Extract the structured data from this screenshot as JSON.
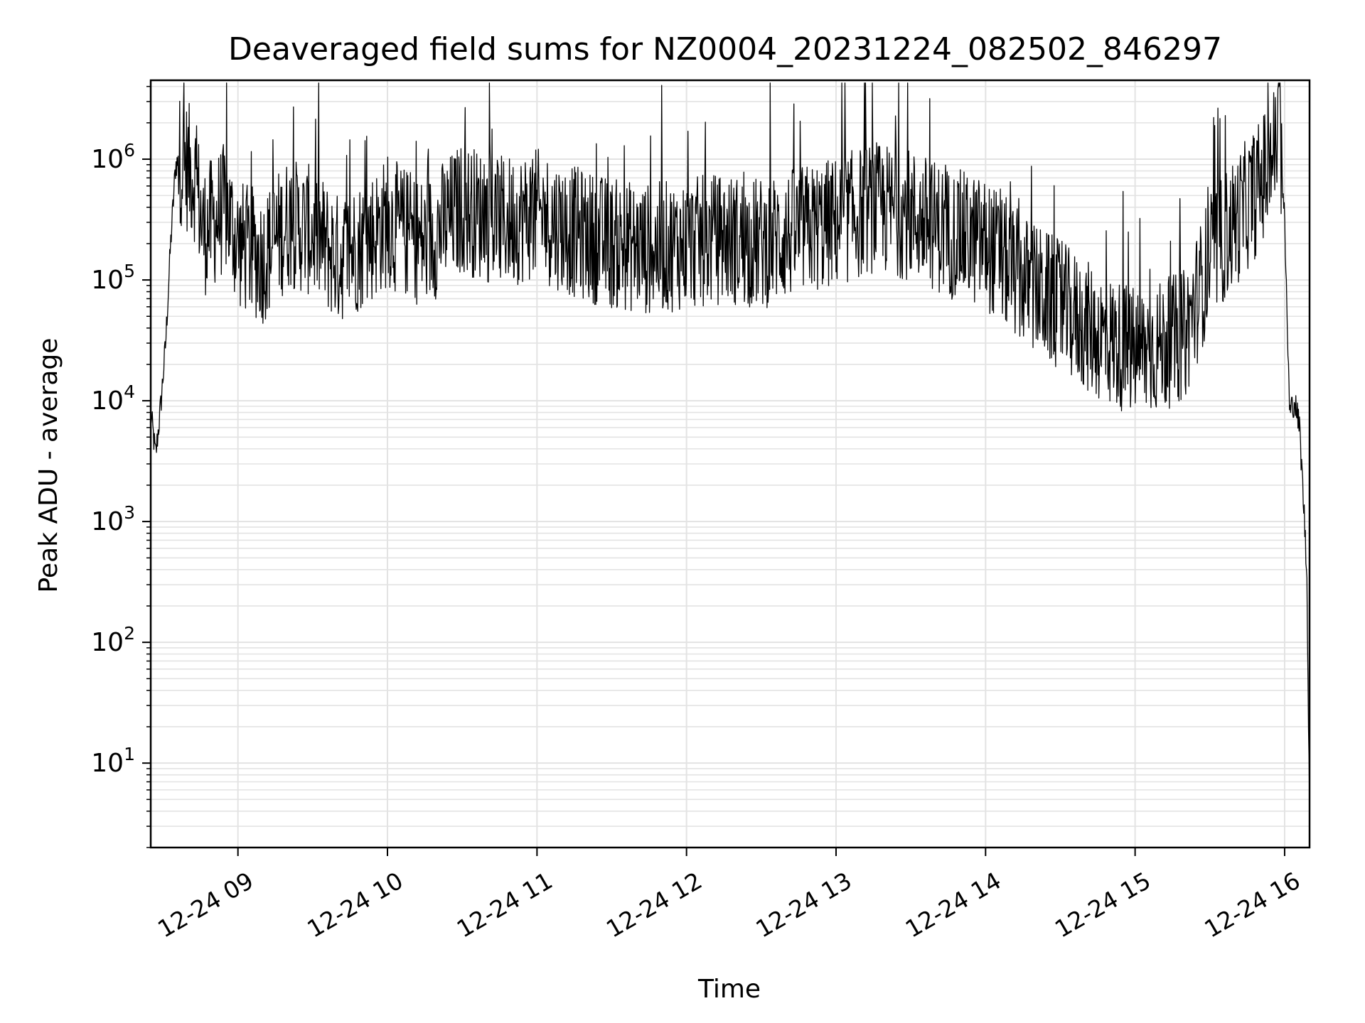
{
  "chart_data": {
    "type": "line",
    "title": "Deaveraged field sums for NZ0004_20231224_082502_846297",
    "xlabel": "Time",
    "ylabel": "Peak ADU - average",
    "yscale": "log",
    "grid": true,
    "legend": "none",
    "line_color": "#000000",
    "xlim": [
      "12-24 08:25",
      "12-24 16:10"
    ],
    "ylim": [
      2,
      4500000
    ],
    "x_ticks": [
      {
        "t": "12-24 09:00",
        "label": "12-24 09"
      },
      {
        "t": "12-24 10:00",
        "label": "12-24 10"
      },
      {
        "t": "12-24 11:00",
        "label": "12-24 11"
      },
      {
        "t": "12-24 12:00",
        "label": "12-24 12"
      },
      {
        "t": "12-24 13:00",
        "label": "12-24 13"
      },
      {
        "t": "12-24 14:00",
        "label": "12-24 14"
      },
      {
        "t": "12-24 15:00",
        "label": "12-24 15"
      },
      {
        "t": "12-24 16:00",
        "label": "12-24 16"
      }
    ],
    "y_ticks": [
      {
        "v": 10,
        "base": "10",
        "exp": "1"
      },
      {
        "v": 100,
        "base": "10",
        "exp": "2"
      },
      {
        "v": 1000,
        "base": "10",
        "exp": "3"
      },
      {
        "v": 10000,
        "base": "10",
        "exp": "4"
      },
      {
        "v": 100000,
        "base": "10",
        "exp": "5"
      },
      {
        "v": 1000000,
        "base": "10",
        "exp": "6"
      }
    ],
    "series": [
      {
        "points": [
          [
            "12-24 08:25",
            8000
          ],
          [
            "12-24 08:27",
            3500
          ],
          [
            "12-24 08:29",
            9000
          ],
          [
            "12-24 08:31",
            30000
          ],
          [
            "12-24 08:33",
            200000
          ],
          [
            "12-24 08:35",
            900000
          ],
          [
            "12-24 08:37",
            1000000
          ],
          [
            "12-24 08:40",
            850000
          ],
          [
            "12-24 08:43",
            700000
          ],
          [
            "12-24 08:46",
            250000
          ],
          [
            "12-24 08:50",
            300000
          ],
          [
            "12-24 08:55",
            400000
          ],
          [
            "12-24 09:00",
            200000
          ],
          [
            "12-24 09:10",
            150000
          ],
          [
            "12-24 09:20",
            300000
          ],
          [
            "12-24 09:30",
            250000
          ],
          [
            "12-24 09:40",
            150000
          ],
          [
            "12-24 09:50",
            200000
          ],
          [
            "12-24 10:00",
            300000
          ],
          [
            "12-24 10:15",
            200000
          ],
          [
            "12-24 10:30",
            400000
          ],
          [
            "12-24 10:45",
            300000
          ],
          [
            "12-24 11:00",
            350000
          ],
          [
            "12-24 11:15",
            250000
          ],
          [
            "12-24 11:30",
            200000
          ],
          [
            "12-24 11:45",
            180000
          ],
          [
            "12-24 12:00",
            200000
          ],
          [
            "12-24 12:15",
            220000
          ],
          [
            "12-24 12:30",
            200000
          ],
          [
            "12-24 12:45",
            250000
          ],
          [
            "12-24 13:00",
            300000
          ],
          [
            "12-24 13:15",
            400000
          ],
          [
            "12-24 13:30",
            350000
          ],
          [
            "12-24 13:45",
            250000
          ],
          [
            "12-24 14:00",
            200000
          ],
          [
            "12-24 14:15",
            100000
          ],
          [
            "12-24 14:30",
            60000
          ],
          [
            "12-24 14:45",
            35000
          ],
          [
            "12-24 15:00",
            25000
          ],
          [
            "12-24 15:10",
            28000
          ],
          [
            "12-24 15:20",
            35000
          ],
          [
            "12-24 15:30",
            150000
          ],
          [
            "12-24 15:40",
            300000
          ],
          [
            "12-24 15:50",
            600000
          ],
          [
            "12-24 15:56",
            1200000
          ],
          [
            "12-24 15:58",
            1800000
          ],
          [
            "12-24 16:00",
            300000
          ],
          [
            "12-24 16:02",
            8000
          ],
          [
            "12-24 16:04",
            10000
          ],
          [
            "12-24 16:06",
            6000
          ],
          [
            "12-24 16:08",
            1000
          ],
          [
            "12-24 16:09",
            300
          ],
          [
            "12-24 16:10",
            4
          ]
        ]
      }
    ]
  }
}
